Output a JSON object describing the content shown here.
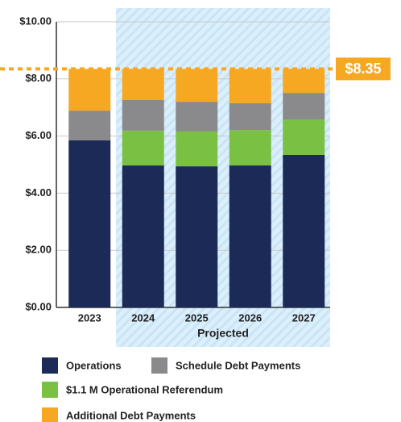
{
  "chart_data": {
    "type": "stacked_bar",
    "categories": [
      "2023",
      "2024",
      "2025",
      "2026",
      "2027"
    ],
    "series": [
      {
        "name": "Operations",
        "color": "#1b2a56",
        "values": [
          5.85,
          4.97,
          4.94,
          4.97,
          5.34
        ]
      },
      {
        "name": "$1.1 M Operational Referendum",
        "color": "#7ac143",
        "values": [
          0,
          1.22,
          1.22,
          1.24,
          1.24
        ]
      },
      {
        "name": "Schedule Debt Payments",
        "color": "#8a8a8c",
        "values": [
          1.04,
          1.07,
          1.04,
          0.94,
          0.93
        ]
      },
      {
        "name": "Additional Debt Payments",
        "color": "#f7a823",
        "values": [
          1.46,
          1.09,
          1.15,
          1.2,
          0.84
        ]
      }
    ],
    "ylim": [
      0,
      10
    ],
    "yticks": [
      {
        "value": 0,
        "label": "$0.00"
      },
      {
        "value": 2,
        "label": "$2.00"
      },
      {
        "value": 4,
        "label": "$4.00"
      },
      {
        "value": 6,
        "label": "$6.00"
      },
      {
        "value": 8,
        "label": "$8.00"
      },
      {
        "value": 10,
        "label": "$10.00"
      }
    ],
    "grid": true,
    "reference_line": {
      "value": 8.35,
      "label": "$8.35",
      "color": "#f7a823"
    },
    "x_group_label": "Projected"
  }
}
